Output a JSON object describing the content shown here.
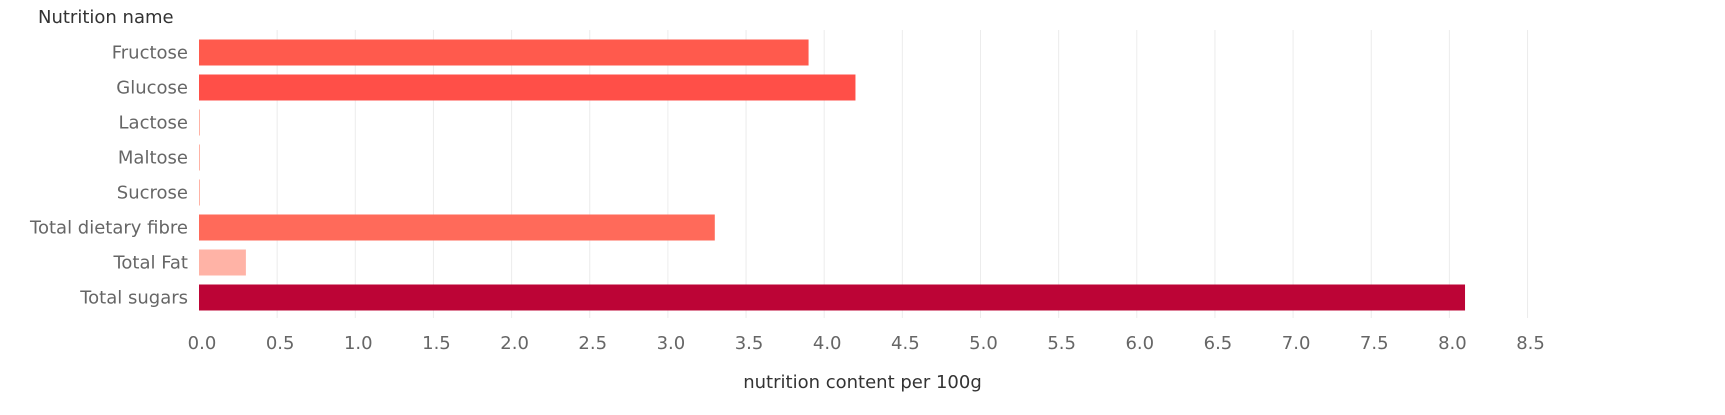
{
  "chart_data": {
    "type": "bar",
    "orientation": "horizontal",
    "y_header": "Nutrition name",
    "xlabel": "nutrition content per 100g",
    "categories": [
      "Fructose",
      "Glucose",
      "Lactose",
      "Maltose",
      "Sucrose",
      "Total dietary fibre",
      "Total Fat",
      "Total sugars"
    ],
    "values": [
      3.9,
      4.2,
      0.0,
      0.0,
      0.0,
      3.3,
      0.3,
      8.1
    ],
    "colors": [
      "#ff5a4d",
      "#ff4f48",
      "#ffb3a6",
      "#ffb3a6",
      "#ffb3a6",
      "#ff6a5a",
      "#ffb3a6",
      "#bc0436"
    ],
    "xlim": [
      0,
      8.5
    ],
    "xticks": [
      0.0,
      0.5,
      1.0,
      1.5,
      2.0,
      2.5,
      3.0,
      3.5,
      4.0,
      4.5,
      5.0,
      5.5,
      6.0,
      6.5,
      7.0,
      7.5,
      8.0,
      8.5
    ],
    "xtick_labels": [
      "0.0",
      "0.5",
      "1.0",
      "1.5",
      "2.0",
      "2.5",
      "3.0",
      "3.5",
      "4.0",
      "4.5",
      "5.0",
      "5.5",
      "6.0",
      "6.5",
      "7.0",
      "7.5",
      "8.0",
      "8.5"
    ],
    "grid": "vertical"
  }
}
